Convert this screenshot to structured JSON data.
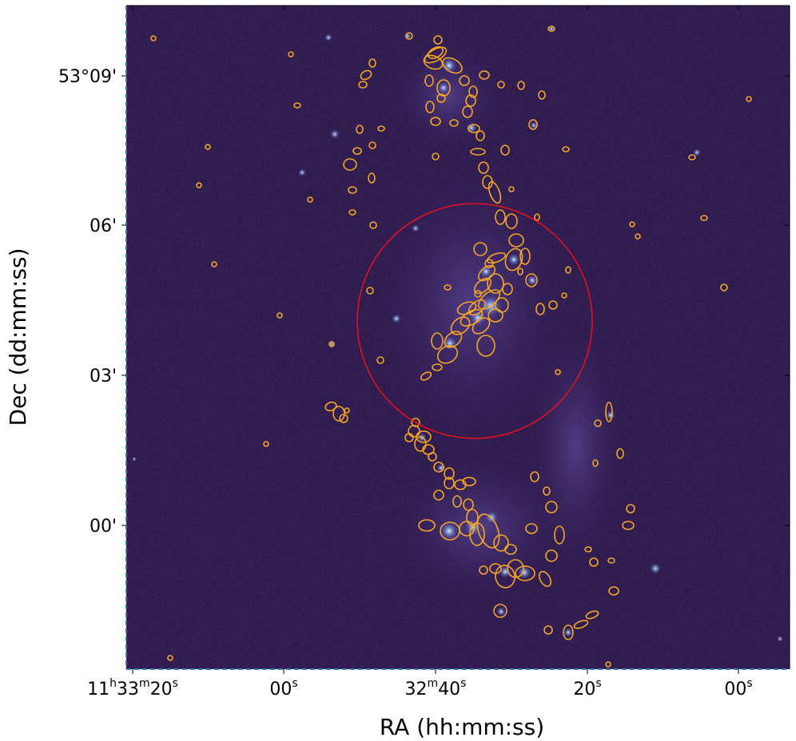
{
  "figure": {
    "x_axis_label": "RA (hh:mm:ss)",
    "y_axis_label": "Dec (dd:mm:ss)",
    "x_ticks": [
      {
        "main": "11",
        "sup1": "h",
        "mid": "33",
        "sup2": "m",
        "end": "20",
        "sup3": "s"
      },
      {
        "main": "00",
        "sup1": "s"
      },
      {
        "main": "32",
        "sup1": "m",
        "mid": "40",
        "sup2": "s"
      },
      {
        "main": "20",
        "sup1": "s"
      },
      {
        "main": "00",
        "sup1": "s"
      }
    ],
    "y_ticks": [
      "53°09'",
      "06'",
      "03'",
      "00'"
    ]
  },
  "colors": {
    "background": "#2e1a4d",
    "region_ellipse": "#f5a623",
    "big_circle": "#e3101b",
    "frame_dash": "#3a77b5"
  }
}
